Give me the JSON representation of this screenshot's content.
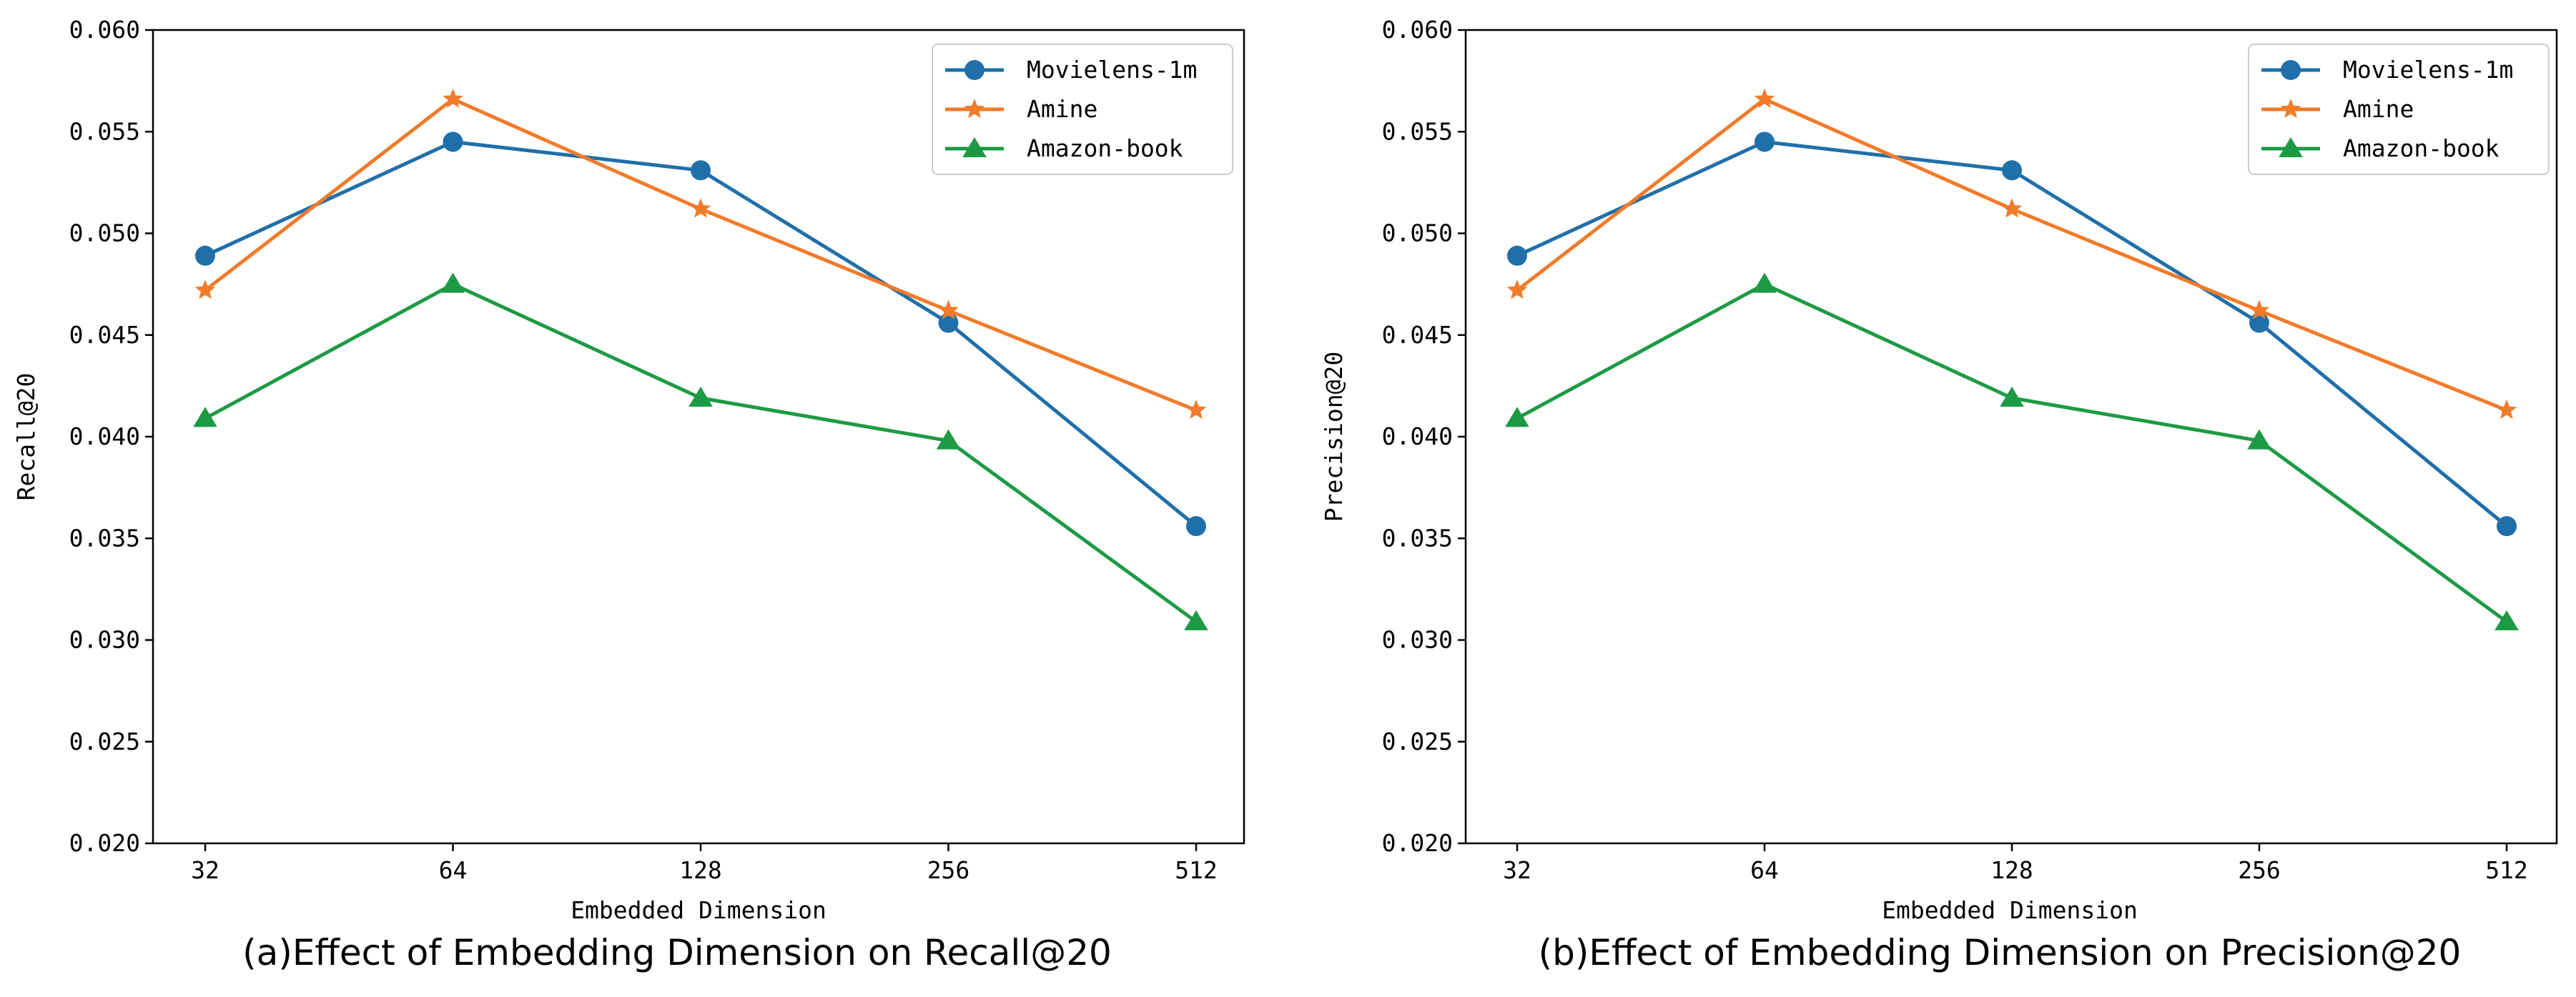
{
  "chart_data": [
    {
      "type": "line",
      "caption": "(a)Effect of Embedding Dimension on Recall@20",
      "xlabel": "Embedded Dimension",
      "ylabel": "Recall@20",
      "categories": [
        "32",
        "64",
        "128",
        "256",
        "512"
      ],
      "ylim": [
        0.02,
        0.06
      ],
      "yticks": [
        "0.020",
        "0.025",
        "0.030",
        "0.035",
        "0.040",
        "0.045",
        "0.050",
        "0.055",
        "0.060"
      ],
      "grid": false,
      "legend_position": "top-right",
      "series": [
        {
          "name": "Movielens-1m",
          "color": "#1f6faa",
          "marker": "circle",
          "values": [
            0.0489,
            0.0545,
            0.0531,
            0.0456,
            0.0356
          ]
        },
        {
          "name": "Amine",
          "color": "#f07b2a",
          "marker": "star",
          "values": [
            0.0472,
            0.0566,
            0.0512,
            0.0462,
            0.0413
          ]
        },
        {
          "name": "Amazon-book",
          "color": "#1d9a44",
          "marker": "triangle",
          "values": [
            0.0409,
            0.0475,
            0.0419,
            0.0398,
            0.0309
          ]
        }
      ]
    },
    {
      "type": "line",
      "caption": "(b)Effect of Embedding Dimension on Precision@20",
      "xlabel": "Embedded Dimension",
      "ylabel": "Precision@20",
      "categories": [
        "32",
        "64",
        "128",
        "256",
        "512"
      ],
      "ylim": [
        0.02,
        0.06
      ],
      "yticks": [
        "0.020",
        "0.025",
        "0.030",
        "0.035",
        "0.040",
        "0.045",
        "0.050",
        "0.055",
        "0.060"
      ],
      "grid": false,
      "legend_position": "top-right",
      "series": [
        {
          "name": "Movielens-1m",
          "color": "#1f6faa",
          "marker": "circle",
          "values": [
            0.0489,
            0.0545,
            0.0531,
            0.0456,
            0.0356
          ]
        },
        {
          "name": "Amine",
          "color": "#f07b2a",
          "marker": "star",
          "values": [
            0.0472,
            0.0566,
            0.0512,
            0.0462,
            0.0413
          ]
        },
        {
          "name": "Amazon-book",
          "color": "#1d9a44",
          "marker": "triangle",
          "values": [
            0.0409,
            0.0475,
            0.0419,
            0.0398,
            0.0309
          ]
        }
      ]
    }
  ]
}
